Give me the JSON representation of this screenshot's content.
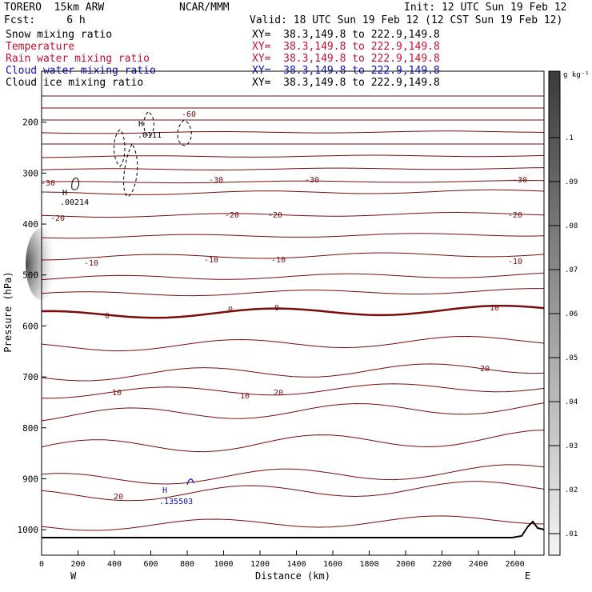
{
  "header": {
    "model": "TORERO  15km ARW",
    "center": "NCAR/MMM",
    "init": "Init: 12 UTC Sun 19 Feb 12",
    "fcst": "Fcst:     6 h",
    "valid": "Valid: 18 UTC Sun 19 Feb 12 (12 CST Sun 19 Feb 12)"
  },
  "fields": [
    {
      "label": "Snow mixing ratio",
      "xy": "XY=  38.3,149.8 to 222.9,149.8",
      "color": "#000000"
    },
    {
      "label": "Temperature",
      "xy": "XY=  38.3,149.8 to 222.9,149.8",
      "color": "#c8102e"
    },
    {
      "label": "Rain water mixing ratio",
      "xy": "XY=  38.3,149.8 to 222.9,149.8",
      "color": "#c8102e"
    },
    {
      "label": "Cloud water mixing ratio",
      "xy": "XY=  38.3,149.8 to 222.9,149.8",
      "color": "#1010c0"
    },
    {
      "label": "Cloud ice mixing ratio",
      "xy": "XY=  38.3,149.8 to 222.9,149.8",
      "color": "#000000"
    }
  ],
  "chart_data": {
    "type": "cross-section contour",
    "xlabel": "Distance (km)",
    "ylabel": "Pressure (hPa)",
    "xlim": [
      0,
      2760
    ],
    "ylim": [
      1050,
      100
    ],
    "x_ticks": [
      "0",
      "200",
      "400",
      "600",
      "800",
      "1000",
      "1200",
      "1400",
      "1600",
      "1800",
      "2000",
      "2200",
      "2400",
      "2600"
    ],
    "y_ticks": [
      "200",
      "300",
      "400",
      "500",
      "600",
      "700",
      "800",
      "900",
      "1000"
    ],
    "x_end_labels": {
      "left": "W",
      "right": "E"
    },
    "temperature_labels": [
      "-60",
      "-30",
      "-30",
      "-30",
      "-30",
      "-20",
      "-20",
      "-20",
      "-20",
      "-10",
      "-10",
      "-10",
      "-10",
      "0",
      "0",
      "0",
      "10",
      "10",
      "10",
      "20",
      "20",
      "20"
    ],
    "cloud_ice_annotation": {
      "marker": "H",
      "value": ".0111"
    },
    "cloud_ice_annotation_2": {
      "marker": "H",
      "value": ".00214"
    },
    "cloud_water_annotation": {
      "marker": "H",
      "value": ".135503"
    },
    "colorbar": {
      "unit": "g kg⁻¹",
      "ticks": [
        ".1",
        ".09",
        ".08",
        ".07",
        ".06",
        ".05",
        ".04",
        ".03",
        ".02",
        ".01"
      ]
    }
  }
}
